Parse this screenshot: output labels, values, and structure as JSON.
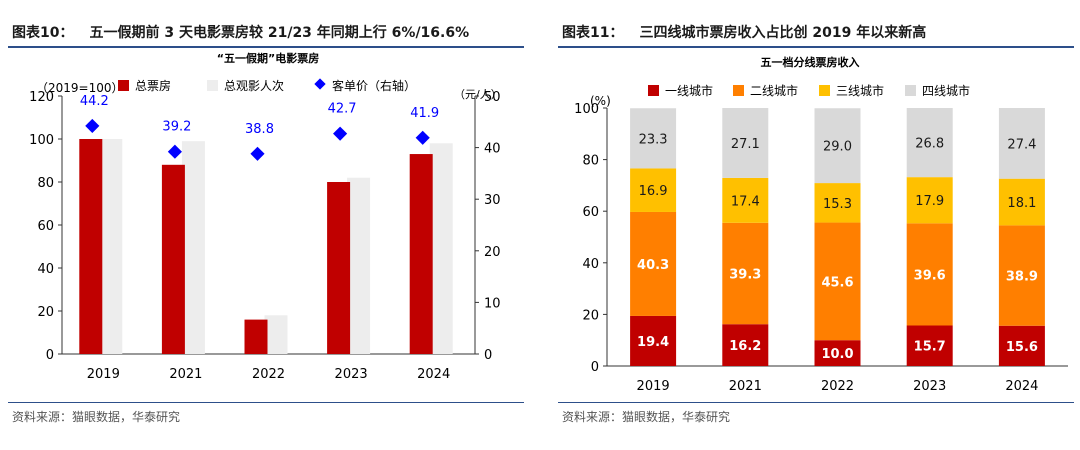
{
  "left": {
    "figure_number": "图表10：",
    "figure_title": "五一假期前 3 天电影票房较 21/23 年同期上行 6%/16.6%",
    "source": "资料来源：猫眼数据，华泰研究",
    "chart_data": {
      "type": "bar",
      "title": "“五一假期”电影票房",
      "categories": [
        "2019",
        "2021",
        "2022",
        "2023",
        "2024"
      ],
      "left_axis_label": "（2019=100）",
      "right_axis_label": "（元/人）",
      "ylim": [
        0,
        120
      ],
      "y_ticks": [
        "0",
        "20",
        "40",
        "60",
        "80",
        "100",
        "120"
      ],
      "y2lim": [
        0,
        50
      ],
      "y2_ticks": [
        "0",
        "10",
        "20",
        "30",
        "40",
        "50"
      ],
      "legend_position": "top",
      "series": [
        {
          "name": "总票房",
          "axis": "left",
          "kind": "bar",
          "color": "#c00000",
          "values": [
            100,
            88,
            16,
            80,
            93
          ]
        },
        {
          "name": "总观影人次",
          "axis": "left",
          "kind": "bar",
          "color": "#ededed",
          "values": [
            100,
            99,
            18,
            82,
            98
          ]
        },
        {
          "name": "客单价（右轴）",
          "axis": "right",
          "kind": "marker",
          "color": "#0000ff",
          "values": [
            44.2,
            39.2,
            38.8,
            42.7,
            41.9
          ],
          "labels": [
            "44.2",
            "39.2",
            "38.8",
            "42.7",
            "41.9"
          ]
        }
      ]
    }
  },
  "right": {
    "figure_number": "图表11：",
    "figure_title": "三四线城市票房收入占比创 2019 年以来新高",
    "source": "资料来源：猫眼数据，华泰研究",
    "chart_data": {
      "type": "bar",
      "stacked": true,
      "title": "五一档分线票房收入",
      "categories": [
        "2019",
        "2021",
        "2022",
        "2023",
        "2024"
      ],
      "y_axis_label": "(%)",
      "ylim": [
        0,
        100
      ],
      "y_ticks": [
        "0",
        "20",
        "40",
        "60",
        "80",
        "100"
      ],
      "legend_position": "top",
      "series": [
        {
          "name": "一线城市",
          "color": "#c00000",
          "label_color": "#ffffff",
          "values": [
            19.4,
            16.2,
            10.0,
            15.7,
            15.6
          ],
          "labels": [
            "19.4",
            "16.2",
            "10.0",
            "15.7",
            "15.6"
          ]
        },
        {
          "name": "二线城市",
          "color": "#ff7f00",
          "label_color": "#ffffff",
          "values": [
            40.3,
            39.3,
            45.6,
            39.6,
            38.9
          ],
          "labels": [
            "40.3",
            "39.3",
            "45.6",
            "39.6",
            "38.9"
          ]
        },
        {
          "name": "三线城市",
          "color": "#ffc000",
          "label_color": "#1a1a1a",
          "values": [
            16.9,
            17.4,
            15.3,
            17.9,
            18.1
          ],
          "labels": [
            "16.9",
            "17.4",
            "15.3",
            "17.9",
            "18.1"
          ]
        },
        {
          "name": "四线城市",
          "color": "#d9d9d9",
          "label_color": "#1a1a1a",
          "values": [
            23.3,
            27.1,
            29.0,
            26.8,
            27.4
          ],
          "labels": [
            "23.3",
            "27.1",
            "29.0",
            "26.8",
            "27.4"
          ]
        }
      ]
    }
  }
}
